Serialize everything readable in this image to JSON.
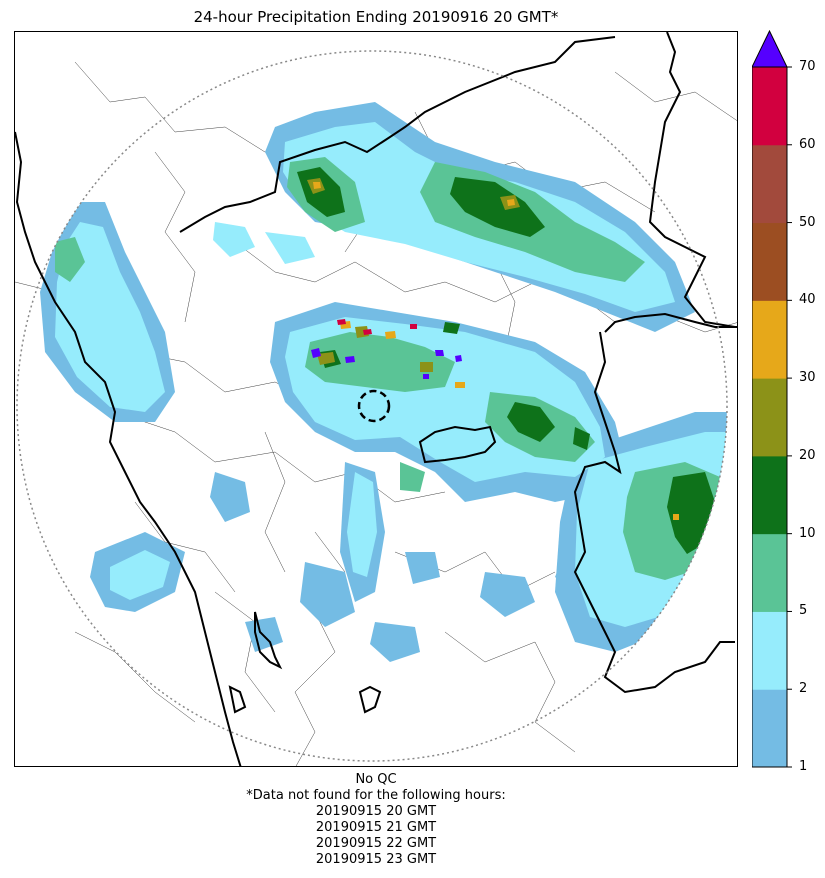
{
  "title": "24-hour Precipitation Ending 20190916 20 GMT*",
  "colorbar": {
    "ticks": [
      "1",
      "2",
      "5",
      "10",
      "20",
      "30",
      "40",
      "50",
      "60",
      "70"
    ],
    "colors": [
      "#74bce4",
      "#96ecfc",
      "#5ac496",
      "#0e721a",
      "#8c9218",
      "#e6a81a",
      "#9c4e22",
      "#a24a3c",
      "#d2003f"
    ],
    "extend_color": "#5500ff"
  },
  "footer": {
    "qc": "No QC",
    "missing_header": "*Data not found for the following hours:",
    "missing_hours": [
      "20190915 20 GMT",
      "20190915 21 GMT",
      "20190915 22 GMT",
      "20190915 23 GMT"
    ]
  }
}
